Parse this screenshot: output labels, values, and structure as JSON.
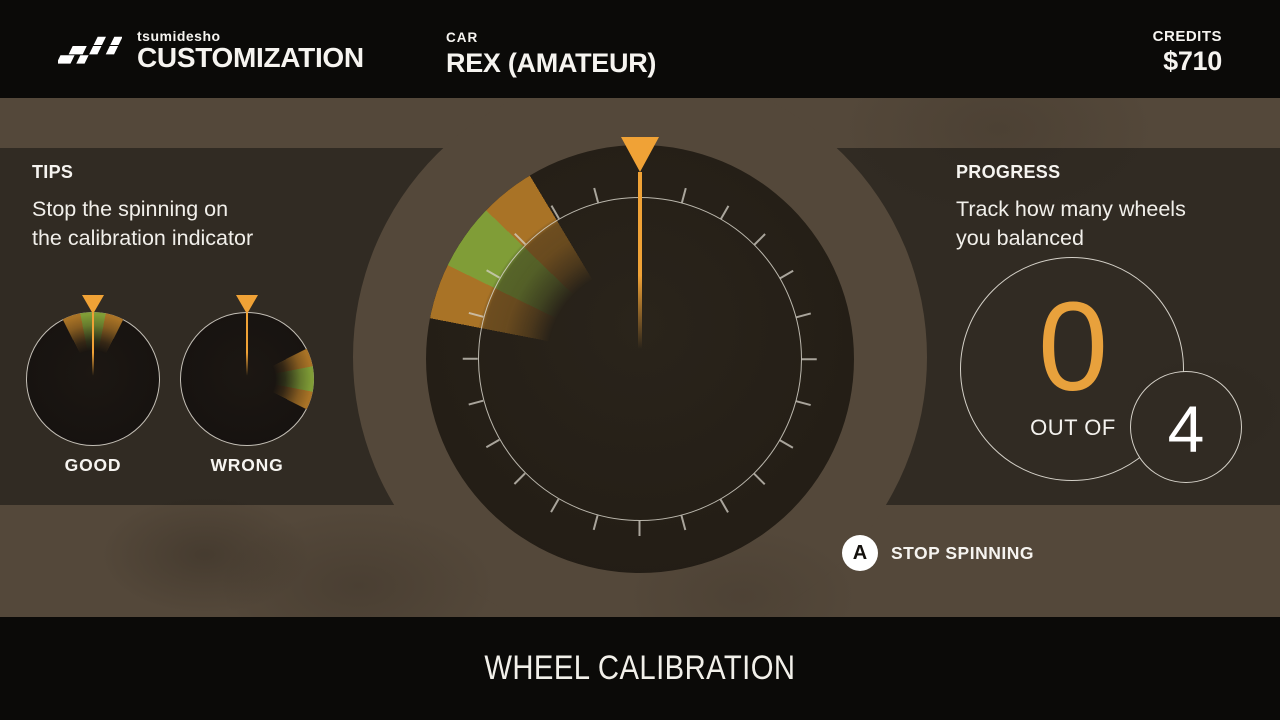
{
  "header": {
    "brand_small": "tsumidesho",
    "brand_large": "CUSTOMIZATION",
    "car_label": "CAR",
    "car_name": "REX (AMATEUR)",
    "credits_label": "CREDITS",
    "credits_value": "$710"
  },
  "tips": {
    "title": "TIPS",
    "body_line1": "Stop the spinning on",
    "body_line2": "the calibration indicator",
    "good_label": "GOOD",
    "wrong_label": "WRONG"
  },
  "progress": {
    "title": "PROGRESS",
    "body_line1": "Track how many wheels",
    "body_line2": "you balanced",
    "count": "0",
    "out_of_label": "OUT OF",
    "total": "4"
  },
  "action": {
    "button_key": "A",
    "label": "STOP SPINNING"
  },
  "footer": {
    "title": "WHEEL CALIBRATION"
  },
  "gauges": {
    "main": {
      "pointer_angle_deg": 0,
      "target_center_deg": -55
    },
    "good_example": {
      "pointer_angle_deg": 0,
      "target_center_deg": 0
    },
    "wrong_example": {
      "pointer_angle_deg": 0,
      "target_center_deg": 90
    }
  },
  "colors": {
    "accent_orange": "#f0a236",
    "count_orange": "#e8a13c",
    "wedge_green": "#809d37",
    "wedge_orange": "#a97326",
    "band_brown": "#54483a",
    "panel_brown": "#312b23",
    "dial_dark": "#262019",
    "bar_black": "#0b0a08",
    "line_light": "#d6d2c9"
  }
}
